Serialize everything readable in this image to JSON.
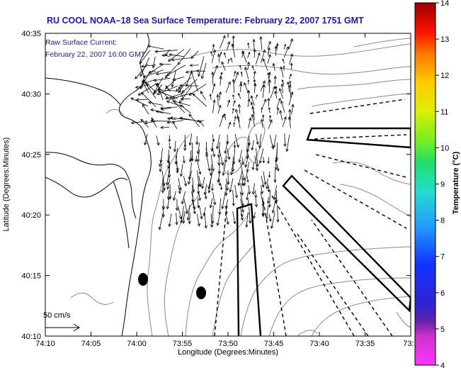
{
  "title": "RU COOL  NOAA–18  Sea Surface Temperature:  February 22, 2007 1751 GMT",
  "current_note": {
    "line1": "Raw Surface Current:",
    "line2": "February 22, 2007 16:00 GMT"
  },
  "scale_label": "50 cm/s",
  "axes": {
    "xlabel": "Longitude (Degrees:Minutes)",
    "ylabel": "Latitude (Degrees:Minutes)",
    "x_ticks": [
      "74:10",
      "74:05",
      "74:00",
      "73:55",
      "73:50",
      "73:45",
      "73:40",
      "73:35",
      "73:3"
    ],
    "y_ticks": [
      "40:35",
      "40:30",
      "40:25",
      "40:20",
      "40:15",
      "40:10"
    ]
  },
  "colorbar": {
    "label": "Temperature (°C)",
    "ticks": [
      "14",
      "13",
      "12",
      "11",
      "10",
      "9",
      "8",
      "7",
      "6",
      "5",
      "4"
    ]
  },
  "colors": {
    "title_blue": "#1a1aa8",
    "contour": "#8a8a8a",
    "coast": "#000000"
  },
  "map": {
    "region": "New York Bight / Hudson Canyon apex",
    "features": [
      "coastline",
      "bathymetry-contours",
      "surface-current-vectors",
      "ship-track-boxes",
      "dashed-transects"
    ]
  }
}
